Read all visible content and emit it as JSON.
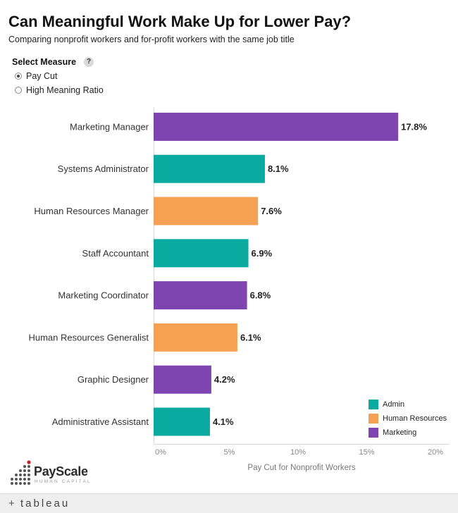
{
  "header": {
    "title": "Can Meaningful Work Make Up for Lower Pay?",
    "subtitle": "Comparing nonprofit workers and for-profit workers with the same job title"
  },
  "measure": {
    "heading": "Select Measure",
    "help": "?",
    "options": [
      {
        "label": "Pay Cut",
        "selected": true
      },
      {
        "label": "High Meaning Ratio",
        "selected": false
      }
    ]
  },
  "colors": {
    "Admin": "#0baaa0",
    "Human Resources": "#f5a153",
    "Marketing": "#7e45b0"
  },
  "chart_data": {
    "type": "bar",
    "orientation": "horizontal",
    "categories": [
      "Marketing Manager",
      "Systems Administrator",
      "Human Resources Manager",
      "Staff Accountant",
      "Marketing Coordinator",
      "Human Resources Generalist",
      "Graphic Designer",
      "Administrative Assistant"
    ],
    "values": [
      17.8,
      8.1,
      7.6,
      6.9,
      6.8,
      6.1,
      4.2,
      4.1
    ],
    "value_labels": [
      "17.8%",
      "8.1%",
      "7.6%",
      "6.9%",
      "6.8%",
      "6.1%",
      "4.2%",
      "4.1%"
    ],
    "groups": [
      "Marketing",
      "Admin",
      "Human Resources",
      "Admin",
      "Marketing",
      "Human Resources",
      "Marketing",
      "Admin"
    ],
    "xlabel": "Pay Cut for Nonprofit Workers",
    "xlim": [
      0,
      20
    ],
    "xticks": [
      0,
      5,
      10,
      15,
      20
    ],
    "xtick_labels": [
      "0%",
      "5%",
      "10%",
      "15%",
      "20%"
    ],
    "legend": [
      "Admin",
      "Human Resources",
      "Marketing"
    ],
    "legend_position": "bottom-right",
    "grid": false
  },
  "branding": {
    "logo_text": "PayScale",
    "logo_subtext": "HUMAN CAPITAL",
    "footer_mark": "+",
    "footer_text": "tableau"
  }
}
